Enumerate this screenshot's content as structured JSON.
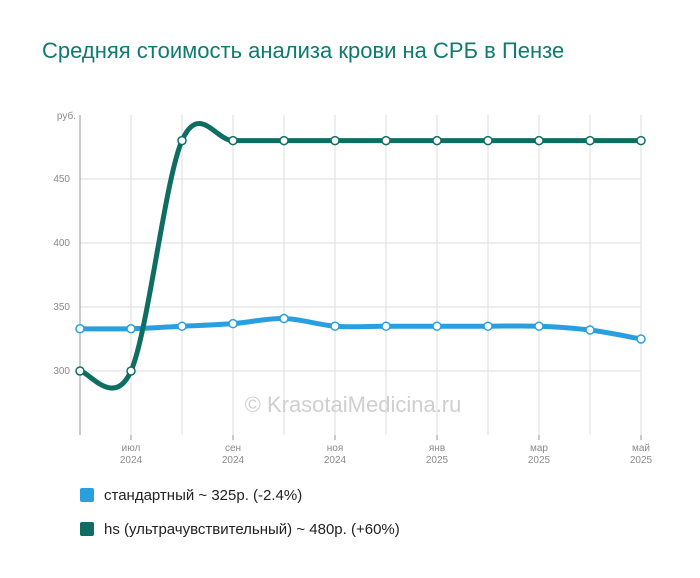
{
  "page_title": "Средняя стоимость анализа крови на СРБ в Пензе",
  "watermark": "© KrasotaiMedicina.ru",
  "colors": {
    "standard": "#2a9fe0",
    "hs": "#0f6e62",
    "title": "#0f7a6e",
    "grid": "#dddddd"
  },
  "chart_data": {
    "type": "line",
    "title": "Средняя стоимость анализа крови на СРБ в Пензе",
    "ylabel": "руб.",
    "y_ticks": [
      300,
      350,
      400,
      450
    ],
    "ylim": [
      250,
      500
    ],
    "x_tick_labels": [
      {
        "month": "июл",
        "year": "2024",
        "index": 1
      },
      {
        "month": "сен",
        "year": "2024",
        "index": 3
      },
      {
        "month": "ноя",
        "year": "2024",
        "index": 5
      },
      {
        "month": "янв",
        "year": "2025",
        "index": 7
      },
      {
        "month": "мар",
        "year": "2025",
        "index": 9
      },
      {
        "month": "май",
        "year": "2025",
        "index": 11
      }
    ],
    "x": [
      "2024-06",
      "2024-07",
      "2024-08",
      "2024-09",
      "2024-10",
      "2024-11",
      "2024-12",
      "2025-01",
      "2025-02",
      "2025-03",
      "2025-04",
      "2025-05"
    ],
    "grid": true,
    "legend_position": "bottom",
    "series": [
      {
        "name": "стандартный",
        "legend": "стандартный ~ 325р. (-2.4%)",
        "color": "#2a9fe0",
        "values": [
          333,
          333,
          335,
          337,
          341,
          335,
          335,
          335,
          335,
          335,
          332,
          325
        ]
      },
      {
        "name": "hs (ультрачувствительный)",
        "legend": "hs (ультрачувствительный) ~ 480р. (+60%)",
        "color": "#0f6e62",
        "values": [
          300,
          300,
          480,
          480,
          480,
          480,
          480,
          480,
          480,
          480,
          480,
          480
        ]
      }
    ]
  }
}
